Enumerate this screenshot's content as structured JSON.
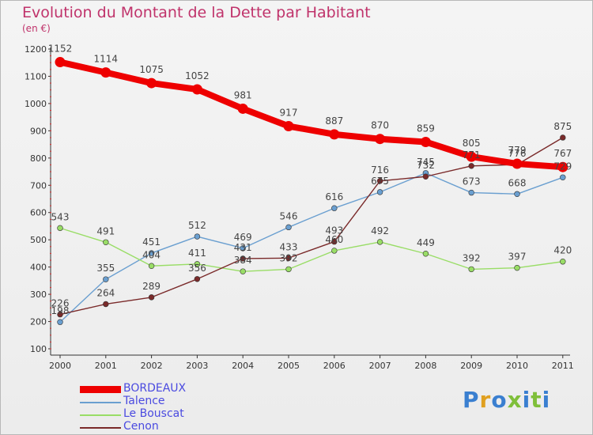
{
  "title": "Evolution du Montant de la Dette par Habitant",
  "subtitle": "(en €)",
  "brand": "Proxiti",
  "chart_data": {
    "type": "line",
    "title": "Evolution du Montant de la Dette par Habitant",
    "subtitle": "(en €)",
    "x": [
      "2000",
      "2001",
      "2002",
      "2003",
      "2004",
      "2005",
      "2006",
      "2007",
      "2008",
      "2009",
      "2010",
      "2011"
    ],
    "ylim": [
      100,
      1200
    ],
    "yticks": [
      100,
      200,
      300,
      400,
      500,
      600,
      700,
      800,
      900,
      1000,
      1100,
      1200
    ],
    "grid": false,
    "legend_position": "bottom-left",
    "series": [
      {
        "name": "BORDEAUX",
        "color": "#ee0000",
        "values": [
          1152,
          1114,
          1075,
          1052,
          981,
          917,
          887,
          870,
          859,
          805,
          779,
          767
        ]
      },
      {
        "name": "Talence",
        "color": "#6a9fd0",
        "values": [
          198,
          355,
          451,
          512,
          469,
          546,
          616,
          675,
          745,
          673,
          668,
          729
        ]
      },
      {
        "name": "Le Bouscat",
        "color": "#99dd66",
        "values": [
          543,
          491,
          404,
          411,
          384,
          392,
          460,
          492,
          449,
          392,
          397,
          420
        ]
      },
      {
        "name": "Cenon",
        "color": "#7a2a2a",
        "values": [
          226,
          264,
          289,
          356,
          431,
          433,
          493,
          716,
          732,
          771,
          776,
          875
        ]
      }
    ],
    "point_labels": {
      "BORDEAUX": [
        "1152",
        "1114",
        "1075",
        "1052",
        "981",
        "917",
        "887",
        "870",
        "859",
        "805",
        "779",
        "767"
      ],
      "Talence": [
        "198",
        "355",
        "451",
        "512",
        "469",
        "546",
        "616",
        "675",
        "745",
        "673",
        "668",
        "729"
      ],
      "Le Bouscat": [
        "543",
        "491",
        "404",
        "411",
        "384",
        "392",
        "460",
        "492",
        "449",
        "392",
        "397",
        "420"
      ],
      "Cenon": [
        "226",
        "264",
        "289",
        "356",
        "431",
        "433",
        "493",
        "716",
        "732",
        "771",
        "776",
        "875"
      ]
    }
  }
}
